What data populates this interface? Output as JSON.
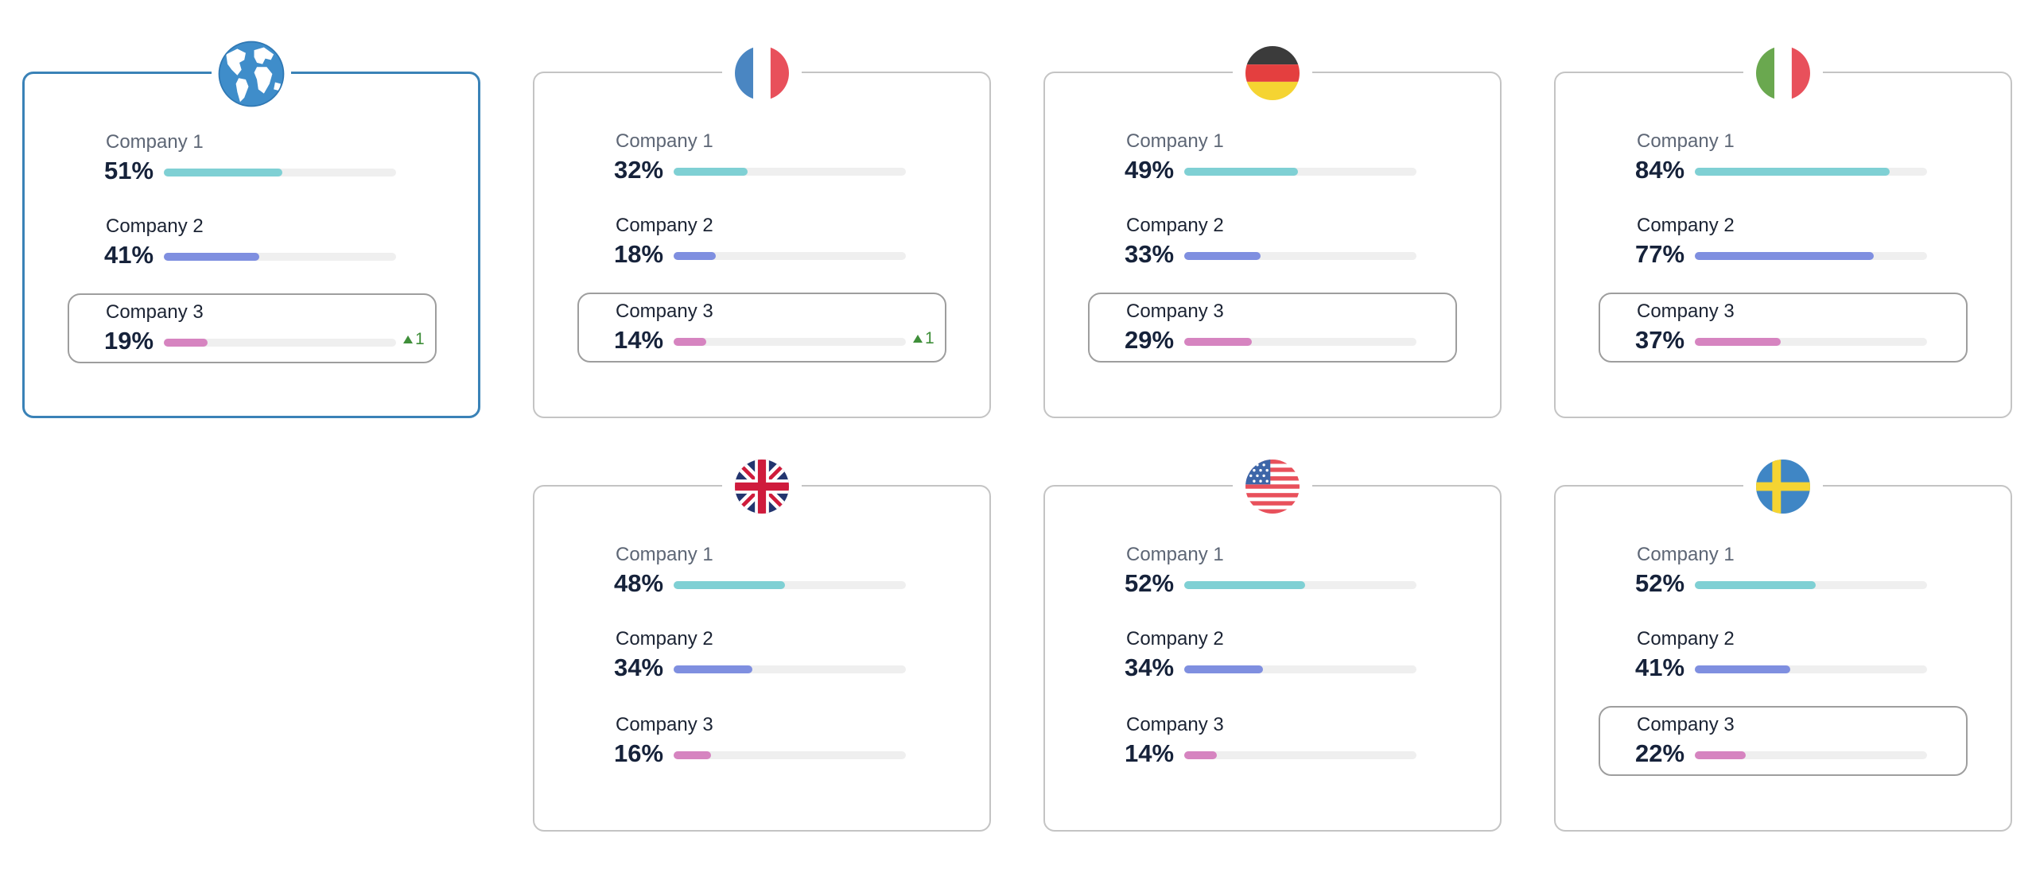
{
  "colors": {
    "company1": "#7fd0d4",
    "company2": "#7f8fe0",
    "company3": "#d684c0",
    "track": "#efefef",
    "trend_up": "#3f8f3a",
    "selected_border": "#3a82b7"
  },
  "cards": [
    {
      "icon": "globe-icon",
      "selected": true,
      "rows": [
        {
          "label": "Company 1",
          "value": "51%",
          "pct": 51
        },
        {
          "label": "Company 2",
          "value": "41%",
          "pct": 41
        },
        {
          "label": "Company 3",
          "value": "19%",
          "pct": 19,
          "highlighted": true,
          "trend": "1"
        }
      ]
    },
    {
      "icon": "flag-france-icon",
      "rows": [
        {
          "label": "Company 1",
          "value": "32%",
          "pct": 32
        },
        {
          "label": "Company 2",
          "value": "18%",
          "pct": 18
        },
        {
          "label": "Company 3",
          "value": "14%",
          "pct": 14,
          "highlighted": true,
          "trend": "1"
        }
      ]
    },
    {
      "icon": "flag-germany-icon",
      "rows": [
        {
          "label": "Company 1",
          "value": "49%",
          "pct": 49
        },
        {
          "label": "Company 2",
          "value": "33%",
          "pct": 33
        },
        {
          "label": "Company 3",
          "value": "29%",
          "pct": 29,
          "highlighted": true
        }
      ]
    },
    {
      "icon": "flag-italy-icon",
      "rows": [
        {
          "label": "Company 1",
          "value": "84%",
          "pct": 84
        },
        {
          "label": "Company 2",
          "value": "77%",
          "pct": 77
        },
        {
          "label": "Company 3",
          "value": "37%",
          "pct": 37,
          "highlighted": true
        }
      ]
    },
    {
      "icon": "flag-uk-icon",
      "rows": [
        {
          "label": "Company 1",
          "value": "48%",
          "pct": 48
        },
        {
          "label": "Company 2",
          "value": "34%",
          "pct": 34
        },
        {
          "label": "Company 3",
          "value": "16%",
          "pct": 16
        }
      ]
    },
    {
      "icon": "flag-usa-icon",
      "rows": [
        {
          "label": "Company 1",
          "value": "52%",
          "pct": 52
        },
        {
          "label": "Company 2",
          "value": "34%",
          "pct": 34
        },
        {
          "label": "Company 3",
          "value": "14%",
          "pct": 14
        }
      ]
    },
    {
      "icon": "flag-sweden-icon",
      "rows": [
        {
          "label": "Company 1",
          "value": "52%",
          "pct": 52
        },
        {
          "label": "Company 2",
          "value": "41%",
          "pct": 41
        },
        {
          "label": "Company 3",
          "value": "22%",
          "pct": 22,
          "highlighted": true
        }
      ]
    }
  ]
}
